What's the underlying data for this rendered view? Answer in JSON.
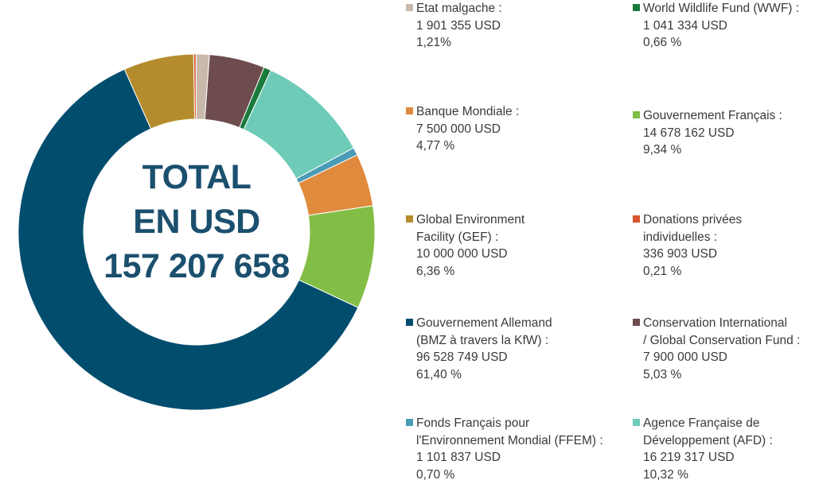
{
  "chart_data": {
    "type": "pie",
    "variant": "donut",
    "center_label": [
      "TOTAL",
      "EN USD",
      "157 207 658"
    ],
    "slices": [
      {
        "label_lines": [
          "Etat malgache :"
        ],
        "amount": "1 901 355 USD",
        "percent": "1,21%",
        "value": 1.21,
        "color": "#c9b9ac"
      },
      {
        "label_lines": [
          "Conservation International",
          "/ Global Conservation Fund :"
        ],
        "amount": "7 900 000 USD",
        "percent": "5,03 %",
        "value": 5.03,
        "color": "#6e4c4e"
      },
      {
        "label_lines": [
          "World Wildlife Fund (WWF) :"
        ],
        "amount": "1 041 334 USD",
        "percent": "0,66 %",
        "value": 0.66,
        "color": "#1a7a3c"
      },
      {
        "label_lines": [
          "Agence Française de",
          "Développement (AFD) :"
        ],
        "amount": "16 219 317 USD",
        "percent": "10,32 %",
        "value": 10.32,
        "color": "#6ecbb8"
      },
      {
        "label_lines": [
          "Fonds Français pour",
          "l'Environnement Mondial (FFEM) :"
        ],
        "amount": "1 101 837 USD",
        "percent": "0,70 %",
        "value": 0.7,
        "color": "#4a9bb5"
      },
      {
        "label_lines": [
          "Banque Mondiale :"
        ],
        "amount": "7 500 000 USD",
        "percent": "4,77 %",
        "value": 4.77,
        "color": "#e08a3e"
      },
      {
        "label_lines": [
          "Gouvernement Français :"
        ],
        "amount": "14 678 162 USD",
        "percent": "9,34 %",
        "value": 9.34,
        "color": "#82be45"
      },
      {
        "label_lines": [
          "Gouvernement Allemand",
          "(BMZ à travers la KfW) :"
        ],
        "amount": "96 528 749 USD",
        "percent": "61,40 %",
        "value": 61.4,
        "color": "#004d6e"
      },
      {
        "label_lines": [
          "Global Environment",
          "Facility (GEF) :"
        ],
        "amount": "10 000 000 USD",
        "percent": "6,36 %",
        "value": 6.36,
        "color": "#b48c2d"
      },
      {
        "label_lines": [
          "Donations privées",
          "individuelles :"
        ],
        "amount": "336 903 USD",
        "percent": "0,21 %",
        "value": 0.21,
        "color": "#d9532e"
      }
    ]
  }
}
